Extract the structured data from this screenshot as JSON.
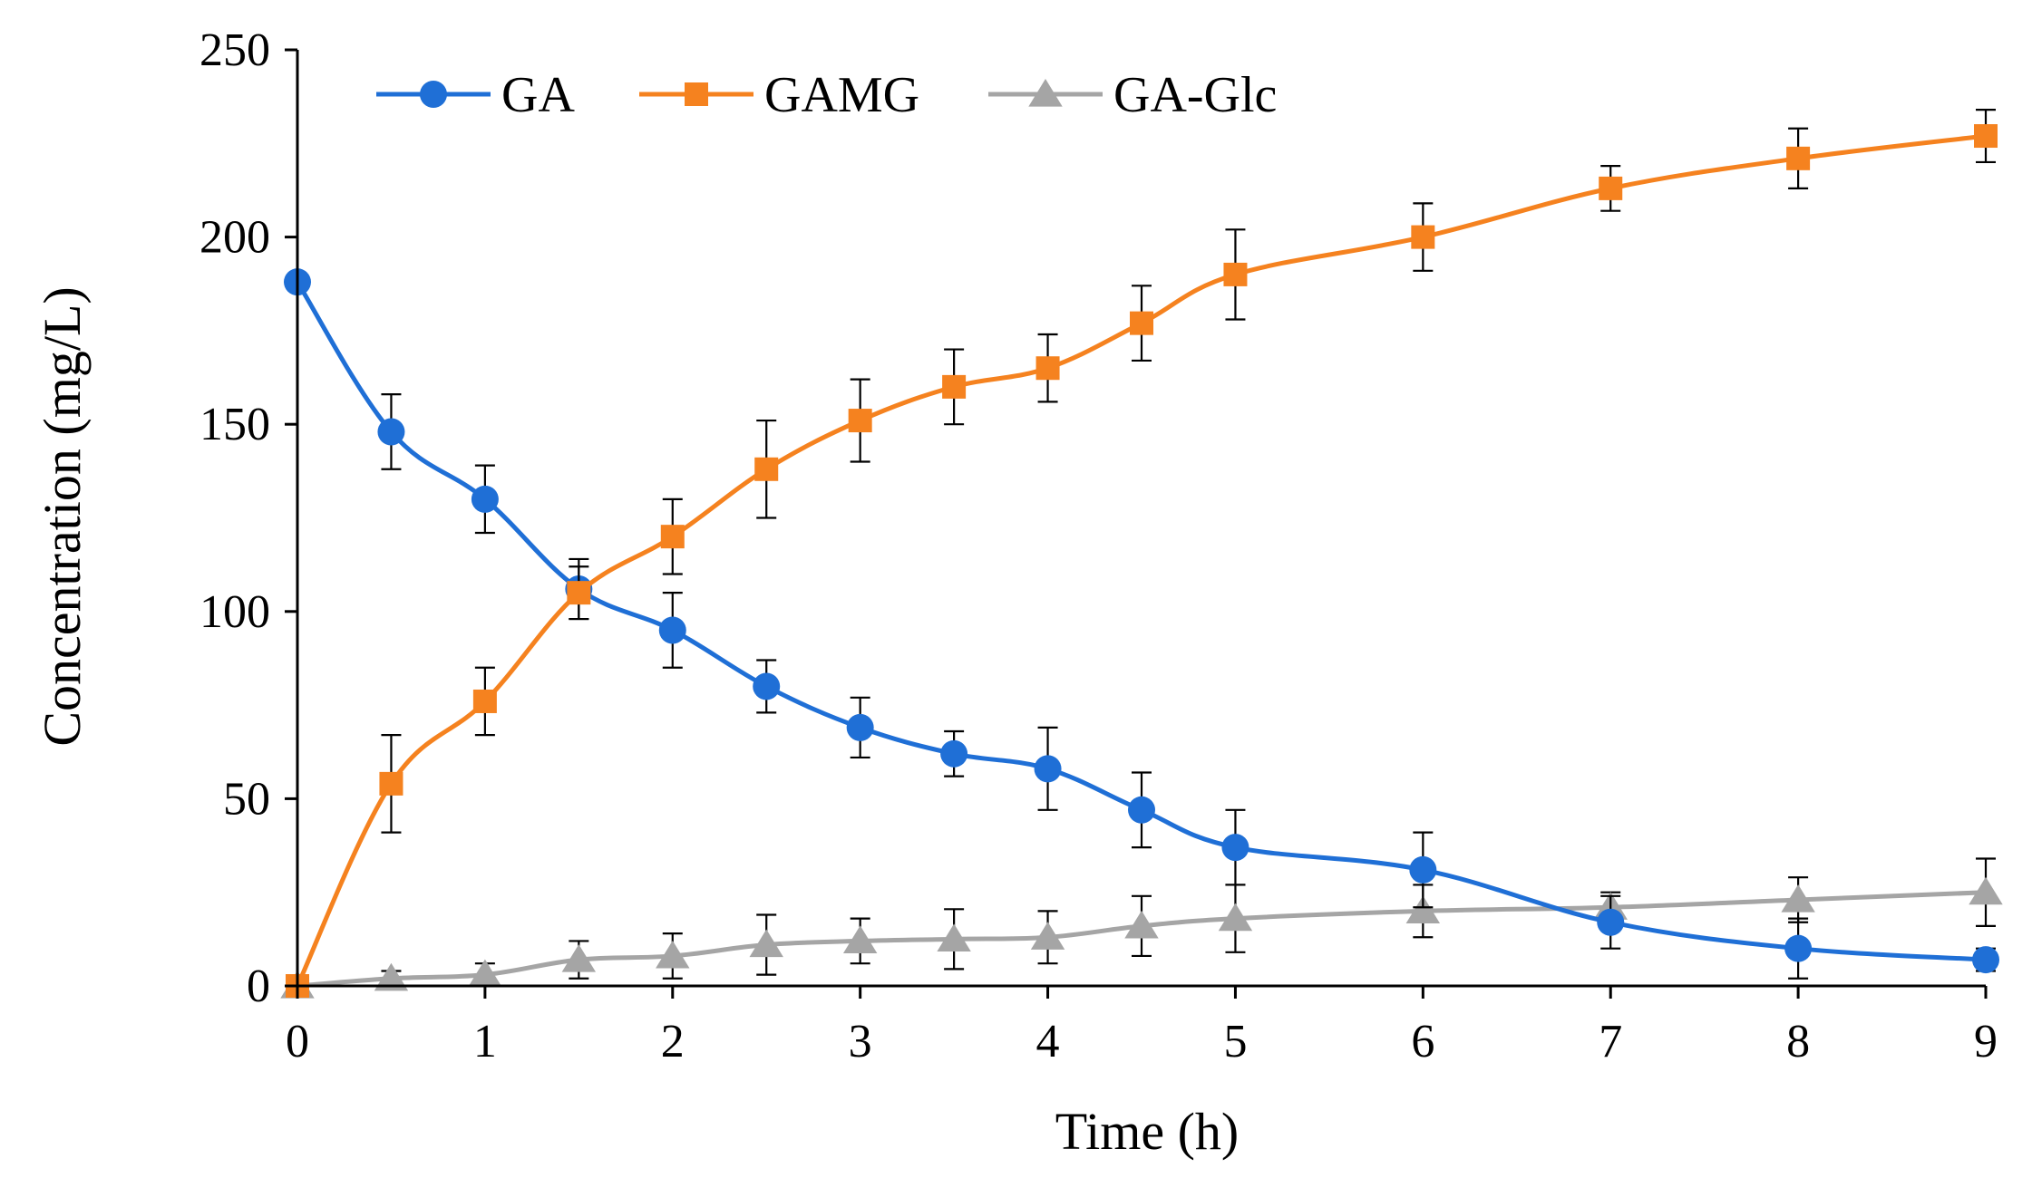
{
  "chart_data": {
    "type": "line",
    "title": "",
    "xlabel": "Time (h)",
    "ylabel": "Concentration (mg/L)",
    "xlim": [
      0,
      9
    ],
    "ylim": [
      0,
      250
    ],
    "xticks": [
      0,
      1,
      2,
      3,
      4,
      5,
      6,
      7,
      8,
      9
    ],
    "yticks": [
      0,
      50,
      100,
      150,
      200,
      250
    ],
    "grid": false,
    "legend_position": "top",
    "error_bars": true,
    "series": [
      {
        "name": "GA",
        "color": "#1f6fd6",
        "marker": "circle",
        "x": [
          0,
          0.5,
          1,
          1.5,
          2,
          2.5,
          3,
          3.5,
          4,
          4.5,
          5,
          6,
          7,
          8,
          9
        ],
        "y": [
          188,
          148,
          130,
          106,
          95,
          80,
          69,
          62,
          58,
          47,
          37,
          31,
          17,
          10,
          7
        ],
        "err": [
          0,
          10,
          9,
          8,
          10,
          7,
          8,
          6,
          11,
          10,
          10,
          10,
          7,
          8,
          3
        ]
      },
      {
        "name": "GAMG",
        "color": "#f5821f",
        "marker": "square",
        "x": [
          0,
          0.5,
          1,
          1.5,
          2,
          2.5,
          3,
          3.5,
          4,
          4.5,
          5,
          6,
          7,
          8,
          9
        ],
        "y": [
          0,
          54,
          76,
          105,
          120,
          138,
          151,
          160,
          165,
          177,
          190,
          200,
          213,
          221,
          227
        ],
        "err": [
          0,
          13,
          9,
          7,
          10,
          13,
          11,
          10,
          9,
          10,
          12,
          9,
          6,
          8,
          7
        ]
      },
      {
        "name": "GA-Glc",
        "color": "#a5a5a5",
        "marker": "triangle",
        "x": [
          0,
          0.5,
          1,
          1.5,
          2,
          2.5,
          3,
          3.5,
          4,
          4.5,
          5,
          6,
          7,
          8,
          9
        ],
        "y": [
          0,
          2,
          3,
          7,
          8,
          11,
          12,
          12.5,
          13,
          16,
          18,
          20,
          21,
          23,
          25
        ],
        "err": [
          0,
          2,
          3,
          5,
          6,
          8,
          6,
          8,
          7,
          8,
          9,
          7,
          4,
          6,
          9
        ]
      }
    ]
  }
}
